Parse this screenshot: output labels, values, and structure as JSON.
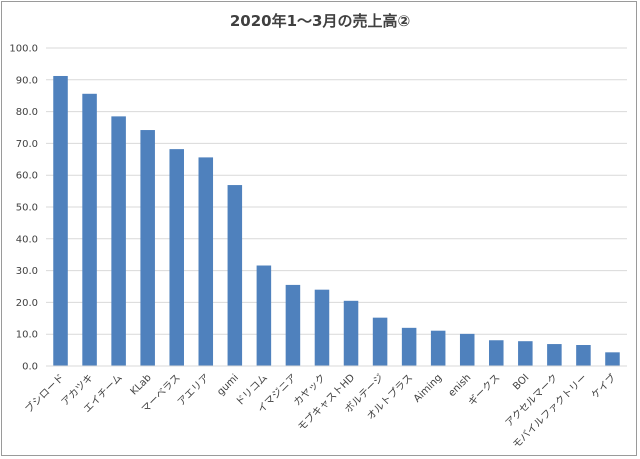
{
  "chart_data": {
    "type": "bar",
    "title": "2020年1～3月の売上高②",
    "xlabel": "",
    "ylabel": "",
    "ylim": [
      0,
      100
    ],
    "yticks": [
      "0.0",
      "10.0",
      "20.0",
      "30.0",
      "40.0",
      "50.0",
      "60.0",
      "70.0",
      "80.0",
      "90.0",
      "100.0"
    ],
    "grid": true,
    "color": "#4f81bd",
    "categories": [
      "ブシロード",
      "アカツキ",
      "エイチーム",
      "KLab",
      "マーベラス",
      "アエリア",
      "gumi",
      "ドリコム",
      "イマジニア",
      "カヤック",
      "モブキャストHD",
      "ボルテージ",
      "オルトプラス",
      "Aiming",
      "enish",
      "ギークス",
      "BOI",
      "アクセルマーク",
      "モバイルファクトリー",
      "ケイブ"
    ],
    "values": [
      91.2,
      85.6,
      78.5,
      74.2,
      68.2,
      65.6,
      56.9,
      31.6,
      25.5,
      24.0,
      20.5,
      15.2,
      12.0,
      11.1,
      10.1,
      8.1,
      7.8,
      6.9,
      6.6,
      4.3
    ]
  }
}
